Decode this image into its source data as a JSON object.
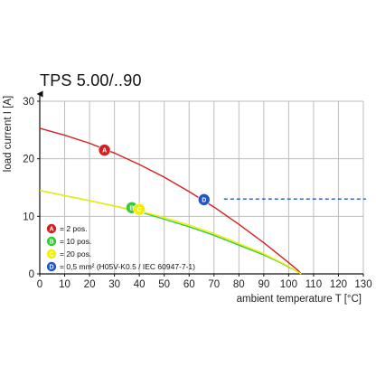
{
  "chart_data": {
    "type": "line",
    "title": "TPS 5.00/..90",
    "xlabel": "ambient temperature T [°C]",
    "ylabel": "load current I [A]",
    "xlim": [
      0,
      130
    ],
    "ylim": [
      0,
      30
    ],
    "xticks": [
      "0",
      "10",
      "20",
      "30",
      "40",
      "50",
      "60",
      "70",
      "80",
      "90",
      "100",
      "110",
      "120",
      "130"
    ],
    "yticks": [
      "0",
      "10",
      "20",
      "30"
    ],
    "grid": true,
    "series": [
      {
        "marker": "A",
        "color": "#d42020",
        "x": [
          0,
          10,
          20,
          30,
          40,
          50,
          60,
          70,
          80,
          90,
          97,
          101,
          104,
          105
        ],
        "y": [
          25.3,
          24.1,
          22.7,
          21.0,
          19.0,
          16.8,
          14.3,
          11.6,
          8.6,
          5.4,
          3.0,
          1.6,
          0.5,
          0
        ]
      },
      {
        "marker": "B",
        "color": "#33cc33",
        "x": [
          0,
          10,
          20,
          30,
          40,
          50,
          60,
          70,
          80,
          90,
          96,
          100,
          103,
          105
        ],
        "y": [
          14.5,
          13.6,
          12.7,
          11.8,
          10.8,
          9.5,
          8.2,
          6.7,
          5.0,
          3.3,
          2.1,
          1.2,
          0.5,
          0
        ]
      },
      {
        "marker": "C",
        "color": "#f0f000",
        "x": [
          0,
          10,
          20,
          30,
          40,
          50,
          60,
          70,
          80,
          90,
          96,
          100,
          103,
          105
        ],
        "y": [
          14.5,
          13.6,
          12.7,
          11.8,
          10.9,
          9.8,
          8.5,
          7.0,
          5.3,
          3.5,
          2.2,
          1.3,
          0.5,
          0
        ]
      },
      {
        "marker": "D",
        "color": "#2255cc",
        "style": "dashed",
        "x": [
          74,
          131
        ],
        "y": [
          13,
          13
        ]
      }
    ],
    "point_markers": [
      {
        "label": "A",
        "color": "#d42020",
        "x": 26,
        "y": 21.5
      },
      {
        "label": "B",
        "color": "#33cc33",
        "x": 37,
        "y": 11.5
      },
      {
        "label": "C",
        "color": "#f0f000",
        "x": 40,
        "y": 11.2
      },
      {
        "label": "D",
        "color": "#2255cc",
        "x": 66,
        "y": 12.9
      }
    ],
    "legend_placement": "bottom-left",
    "legend": [
      {
        "label": "A",
        "color": "#d42020",
        "text": "= 2 pos."
      },
      {
        "label": "B",
        "color": "#33cc33",
        "text": "= 10 pos."
      },
      {
        "label": "C",
        "color": "#f0f000",
        "text": "= 20 pos."
      },
      {
        "label": "D",
        "color": "#2255cc",
        "text": "= 0,5 mm² (H05V-K0.5 / IEC 60947-7-1)"
      }
    ]
  }
}
